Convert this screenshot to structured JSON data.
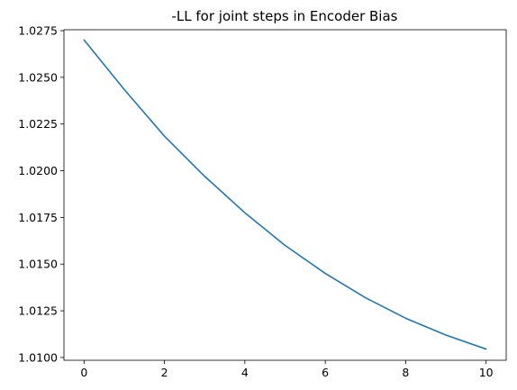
{
  "chart_data": {
    "type": "line",
    "title": "-LL for joint steps in Encoder Bias",
    "xlabel": "",
    "ylabel": "",
    "xlim": [
      -0.5,
      10.5
    ],
    "ylim": [
      1.00985,
      1.02755
    ],
    "xticks": [
      0,
      2,
      4,
      6,
      8,
      10
    ],
    "xtick_labels": [
      "0",
      "2",
      "4",
      "6",
      "8",
      "10"
    ],
    "yticks": [
      1.01,
      1.0125,
      1.015,
      1.0175,
      1.02,
      1.0225,
      1.025,
      1.0275
    ],
    "ytick_labels": [
      "1.0100",
      "1.0125",
      "1.0150",
      "1.0175",
      "1.0200",
      "1.0225",
      "1.0250",
      "1.0275"
    ],
    "grid": false,
    "series": [
      {
        "color": "#1f77b4",
        "x": [
          0,
          1,
          2,
          3,
          4,
          5,
          6,
          7,
          8,
          9,
          10
        ],
        "y": [
          1.027,
          1.02435,
          1.02185,
          1.0197,
          1.01775,
          1.016,
          1.0145,
          1.0132,
          1.0121,
          1.0112,
          1.01045
        ]
      }
    ]
  }
}
